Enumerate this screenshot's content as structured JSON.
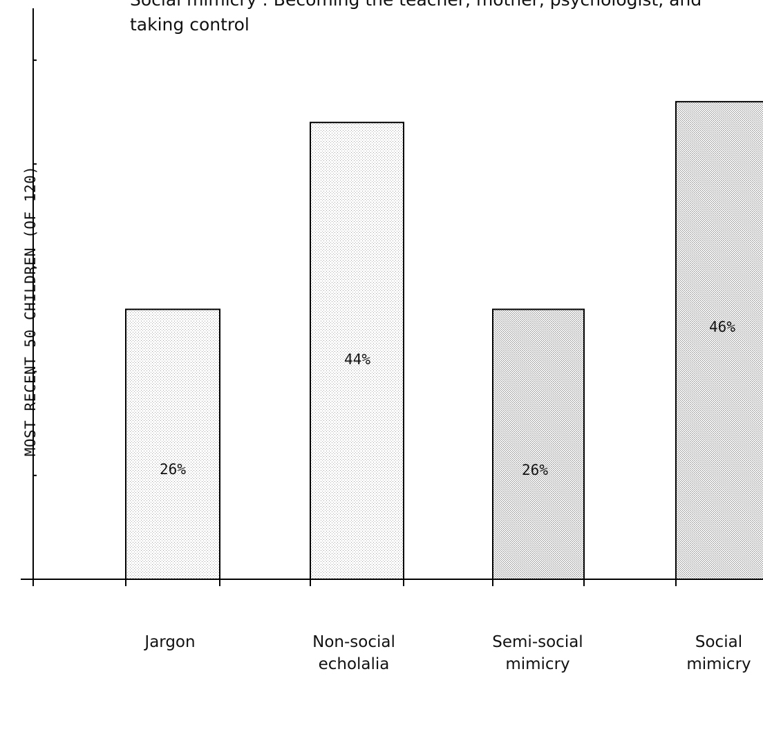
{
  "chart_data": {
    "type": "bar",
    "title": "Social mimicry : Becoming the teacher, mother, psychologist, and taking control",
    "ylabel": "MOST RECENT 50 CHILDREN (OF 120)",
    "xlabel": "",
    "categories": [
      "Jargon",
      "Non-social echolalia",
      "Semi-social mimicry",
      "Social mimicry"
    ],
    "category_lines": [
      [
        "Jargon"
      ],
      [
        "Non-social",
        "echolalia"
      ],
      [
        "Semi-social",
        "mimicry"
      ],
      [
        "Social",
        "mimicry"
      ]
    ],
    "values": [
      26,
      44,
      26,
      46
    ],
    "data_labels": [
      "26%",
      "44%",
      "26%",
      "46%"
    ],
    "ylim": [
      0,
      55
    ],
    "grid": false,
    "colors": {
      "bar_fill": "#d9d9d9",
      "bar_fill_dark": "#c4c4c4",
      "axis": "#000000"
    }
  }
}
